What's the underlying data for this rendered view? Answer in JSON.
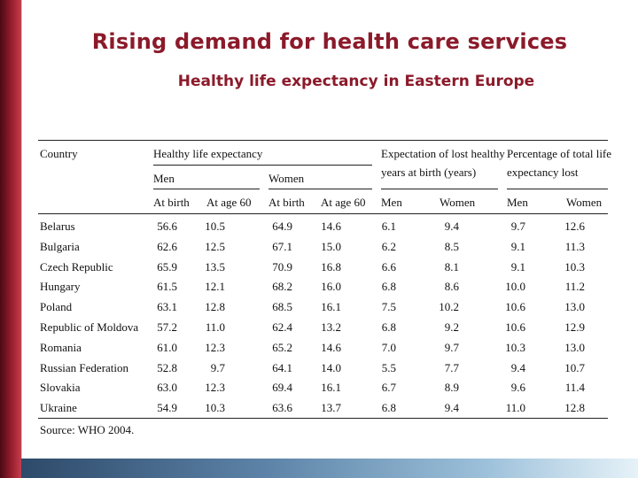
{
  "title": "Rising demand for health care services",
  "subtitle": "Healthy life expectancy in Eastern Europe",
  "table": {
    "header": {
      "country": "Country",
      "hle": "Healthy life expectancy",
      "lost": "Expectation of lost healthy",
      "lost2": "years at birth (years)",
      "pct": "Percentage of total life",
      "pct2": "expectancy lost",
      "men": "Men",
      "women": "Women",
      "at_birth": "At birth",
      "at_60": "At age 60"
    },
    "rows": [
      {
        "country": "Belarus",
        "v": [
          "56.6",
          "10.5",
          "64.9",
          "14.6",
          "6.1",
          "9.4",
          "9.7",
          "12.6"
        ]
      },
      {
        "country": "Bulgaria",
        "v": [
          "62.6",
          "12.5",
          "67.1",
          "15.0",
          "6.2",
          "8.5",
          "9.1",
          "11.3"
        ]
      },
      {
        "country": "Czech Republic",
        "v": [
          "65.9",
          "13.5",
          "70.9",
          "16.8",
          "6.6",
          "8.1",
          "9.1",
          "10.3"
        ]
      },
      {
        "country": "Hungary",
        "v": [
          "61.5",
          "12.1",
          "68.2",
          "16.0",
          "6.8",
          "8.6",
          "10.0",
          "11.2"
        ]
      },
      {
        "country": "Poland",
        "v": [
          "63.1",
          "12.8",
          "68.5",
          "16.1",
          "7.5",
          "10.2",
          "10.6",
          "13.0"
        ]
      },
      {
        "country": "Republic of Moldova",
        "v": [
          "57.2",
          "11.0",
          "62.4",
          "13.2",
          "6.8",
          "9.2",
          "10.6",
          "12.9"
        ]
      },
      {
        "country": "Romania",
        "v": [
          "61.0",
          "12.3",
          "65.2",
          "14.6",
          "7.0",
          "9.7",
          "10.3",
          "13.0"
        ]
      },
      {
        "country": "Russian Federation",
        "v": [
          "52.8",
          "9.7",
          "64.1",
          "14.0",
          "5.5",
          "7.7",
          "9.4",
          "10.7"
        ]
      },
      {
        "country": "Slovakia",
        "v": [
          "63.0",
          "12.3",
          "69.4",
          "16.1",
          "6.7",
          "8.9",
          "9.6",
          "11.4"
        ]
      },
      {
        "country": "Ukraine",
        "v": [
          "54.9",
          "10.3",
          "63.6",
          "13.7",
          "6.8",
          "9.4",
          "11.0",
          "12.8"
        ]
      }
    ],
    "source": "Source: WHO 2004."
  }
}
